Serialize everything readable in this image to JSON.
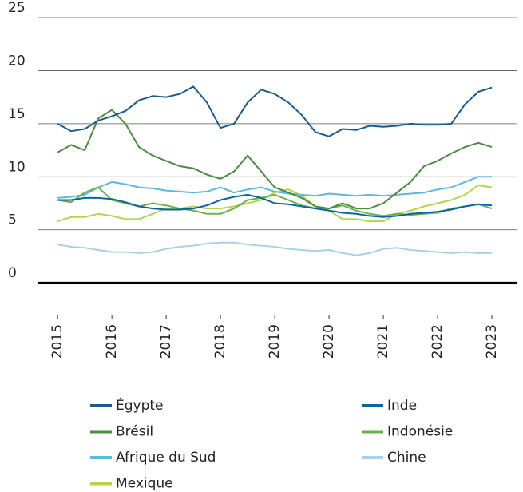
{
  "chart_data": {
    "type": "line",
    "x": [
      2015,
      2015.25,
      2015.5,
      2015.75,
      2016,
      2016.25,
      2016.5,
      2016.75,
      2017,
      2017.25,
      2017.5,
      2017.75,
      2018,
      2018.25,
      2018.5,
      2018.75,
      2019,
      2019.25,
      2019.5,
      2019.75,
      2020,
      2020.25,
      2020.5,
      2020.75,
      2021,
      2021.25,
      2021.5,
      2021.75,
      2022,
      2022.25,
      2022.5,
      2022.75,
      2023
    ],
    "series": [
      {
        "name": "Égypte",
        "color": "#1b5a8c",
        "values": [
          15,
          14.3,
          14.5,
          15.3,
          15.7,
          16.2,
          17.2,
          17.6,
          17.5,
          17.8,
          18.5,
          17.0,
          14.6,
          15.0,
          17.0,
          18.2,
          17.8,
          17.0,
          15.8,
          14.2,
          13.8,
          14.5,
          14.4,
          14.8,
          14.7,
          14.8,
          15.0,
          14.9,
          14.9,
          15.0,
          16.8,
          18.0,
          18.4
        ]
      },
      {
        "name": "Inde",
        "color": "#0b66a0",
        "values": [
          7.8,
          7.8,
          8.0,
          8.0,
          7.9,
          7.6,
          7.2,
          7.0,
          6.9,
          6.9,
          7.0,
          7.3,
          7.8,
          8.1,
          8.3,
          8.0,
          7.5,
          7.4,
          7.2,
          7.0,
          6.8,
          6.6,
          6.5,
          6.3,
          6.2,
          6.3,
          6.5,
          6.6,
          6.7,
          6.9,
          7.2,
          7.4,
          7.3
        ]
      },
      {
        "name": "Brésil",
        "color": "#4a8c3f",
        "values": [
          12.3,
          13.0,
          12.5,
          15.5,
          16.3,
          15.0,
          12.8,
          12.0,
          11.5,
          11.0,
          10.8,
          10.2,
          9.8,
          10.5,
          12.0,
          10.5,
          9.0,
          8.5,
          8.0,
          7.2,
          7.0,
          7.5,
          7.0,
          7.0,
          7.5,
          8.5,
          9.5,
          11.0,
          11.5,
          12.2,
          12.8,
          13.2,
          12.8
        ]
      },
      {
        "name": "Indonésie",
        "color": "#6ab34b",
        "values": [
          7.8,
          7.6,
          8.5,
          9.0,
          7.8,
          7.5,
          7.2,
          7.5,
          7.3,
          7.0,
          6.8,
          6.5,
          6.5,
          7.0,
          7.8,
          8.0,
          8.3,
          7.8,
          7.3,
          7.0,
          7.0,
          7.3,
          6.8,
          6.5,
          6.3,
          6.5,
          6.4,
          6.5,
          6.6,
          7.0,
          7.2,
          7.4,
          7.0
        ]
      },
      {
        "name": "Afrique du Sud",
        "color": "#5db7e0",
        "values": [
          8.0,
          8.1,
          8.3,
          9.0,
          9.5,
          9.3,
          9.0,
          8.9,
          8.7,
          8.6,
          8.5,
          8.6,
          9.0,
          8.5,
          8.8,
          9.0,
          8.6,
          8.4,
          8.3,
          8.2,
          8.4,
          8.3,
          8.2,
          8.3,
          8.2,
          8.3,
          8.4,
          8.5,
          8.8,
          9.0,
          9.5,
          10.0,
          10.0
        ]
      },
      {
        "name": "Chine",
        "color": "#a5d2e6",
        "values": [
          3.6,
          3.4,
          3.3,
          3.1,
          2.9,
          2.9,
          2.8,
          2.9,
          3.2,
          3.4,
          3.5,
          3.7,
          3.8,
          3.8,
          3.6,
          3.5,
          3.4,
          3.2,
          3.1,
          3.0,
          3.1,
          2.8,
          2.6,
          2.8,
          3.2,
          3.3,
          3.1,
          3.0,
          2.9,
          2.8,
          2.9,
          2.8,
          2.8
        ]
      },
      {
        "name": "Mexique",
        "color": "#b4d44a",
        "values": [
          5.8,
          6.2,
          6.2,
          6.5,
          6.3,
          6.0,
          6.0,
          6.5,
          7.0,
          7.0,
          7.2,
          7.0,
          7.0,
          7.2,
          7.5,
          7.8,
          8.5,
          8.8,
          8.2,
          7.2,
          6.8,
          6.0,
          6.0,
          5.8,
          5.8,
          6.5,
          6.8,
          7.2,
          7.5,
          7.8,
          8.3,
          9.2,
          9.0
        ]
      }
    ],
    "xlim": [
      2014.63,
      2023.47
    ],
    "xticks": [
      2015,
      2016,
      2017,
      2018,
      2019,
      2020,
      2021,
      2022,
      2023
    ],
    "ylim": [
      -3,
      25
    ],
    "yticks": [
      0,
      5,
      10,
      15,
      20,
      25
    ],
    "grid": true
  }
}
